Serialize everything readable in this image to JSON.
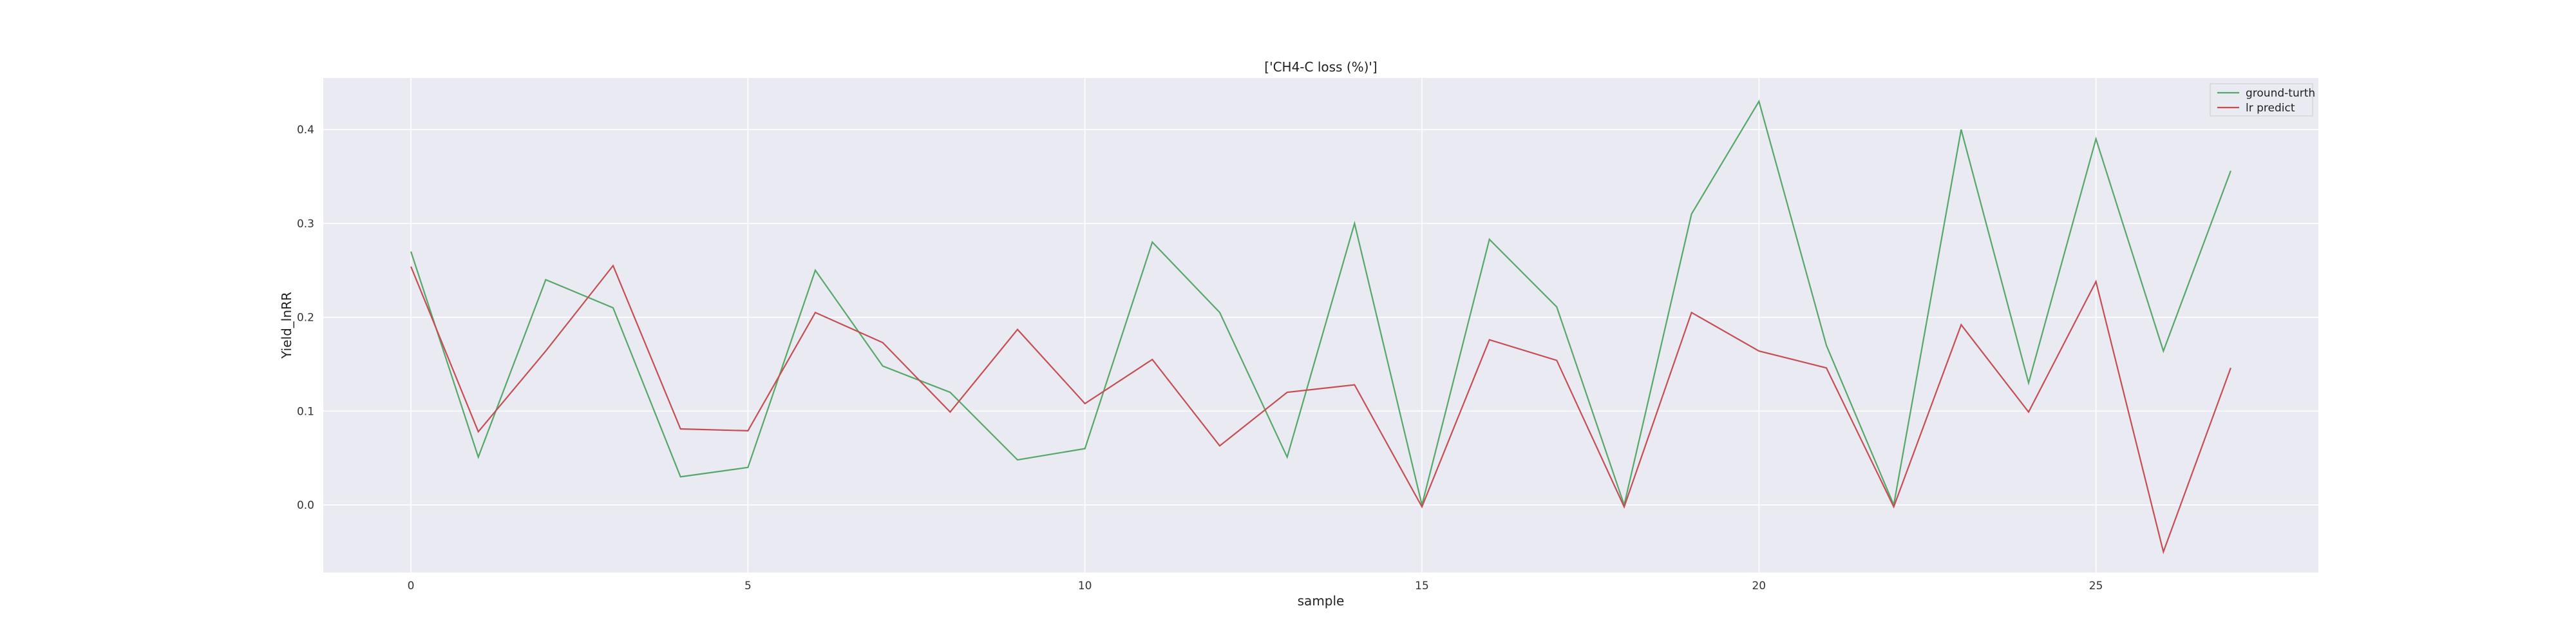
{
  "chart_data": {
    "type": "line",
    "title": "['CH4-C loss (%)']",
    "xlabel": "sample",
    "ylabel": "Yield_lnRR",
    "xlim": [
      -1.3,
      28.3
    ],
    "ylim": [
      -0.072,
      0.455
    ],
    "xticks": [
      0,
      5,
      10,
      15,
      20,
      25
    ],
    "yticks": [
      0.0,
      0.1,
      0.2,
      0.3,
      0.4
    ],
    "ytick_labels": [
      "0.0",
      "0.1",
      "0.2",
      "0.3",
      "0.4"
    ],
    "grid": true,
    "legend_position": "top-right",
    "x": [
      0,
      1,
      2,
      3,
      4,
      5,
      6,
      7,
      8,
      9,
      10,
      11,
      12,
      13,
      14,
      15,
      16,
      17,
      18,
      19,
      20,
      21,
      22,
      23,
      24,
      25,
      26,
      27
    ],
    "series": [
      {
        "name": "ground-turth",
        "color": "#55a868",
        "values": [
          0.27,
          0.051,
          0.24,
          0.21,
          0.03,
          0.04,
          0.25,
          0.148,
          0.12,
          0.048,
          0.06,
          0.28,
          0.205,
          0.051,
          0.3,
          0.0,
          0.283,
          0.211,
          0.0,
          0.31,
          0.43,
          0.17,
          0.0,
          0.4,
          0.13,
          0.39,
          0.164,
          0.356
        ]
      },
      {
        "name": "lr predict",
        "color": "#c44e52",
        "values": [
          0.254,
          0.078,
          0.164,
          0.255,
          0.081,
          0.079,
          0.205,
          0.173,
          0.099,
          0.187,
          0.108,
          0.155,
          0.063,
          0.12,
          0.128,
          -0.002,
          0.176,
          0.154,
          -0.002,
          0.205,
          0.164,
          0.146,
          -0.002,
          0.192,
          0.099,
          0.238,
          -0.05,
          0.146
        ]
      }
    ]
  }
}
